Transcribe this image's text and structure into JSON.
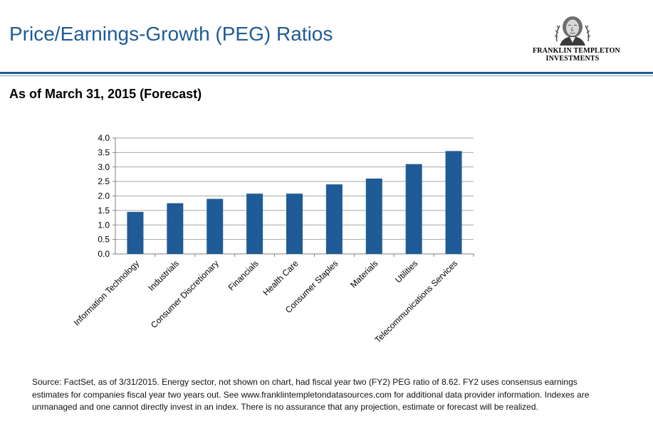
{
  "header": {
    "title": "Price/Earnings-Growth (PEG) Ratios",
    "logo_line1": "FRANKLIN TEMPLETON",
    "logo_line2": "INVESTMENTS",
    "logo_icon": "franklin-portrait-icon"
  },
  "subtitle": "As of March 31, 2015 (Forecast)",
  "colors": {
    "brand": "#1f5b96",
    "bar": "#1f5b96"
  },
  "chart_data": {
    "type": "bar",
    "title": "",
    "xlabel": "",
    "ylabel": "",
    "categories": [
      "Information Technology",
      "Industrials",
      "Consumer Discretionary",
      "Financials",
      "Health Care",
      "Consumer Staples",
      "Materials",
      "Utilities",
      "Telecommunications Services"
    ],
    "values": [
      1.45,
      1.75,
      1.9,
      2.08,
      2.08,
      2.4,
      2.6,
      3.1,
      3.55
    ],
    "ylim": [
      0,
      4
    ],
    "yticks": [
      "0.0",
      "0.5",
      "1.0",
      "1.5",
      "2.0",
      "2.5",
      "3.0",
      "3.5",
      "4.0"
    ],
    "grid": true,
    "legend": "none"
  },
  "source_note": "Source: FactSet, as of 3/31/2015. Energy sector, not shown on chart, had fiscal year two (FY2) PEG ratio of 8.62. FY2 uses consensus earnings estimates for companies fiscal year two years out. See www.franklintempletondatasources.com for additional data provider information. Indexes are unmanaged and one cannot  directly invest in an index. There is no assurance that any projection, estimate or forecast will be realized."
}
